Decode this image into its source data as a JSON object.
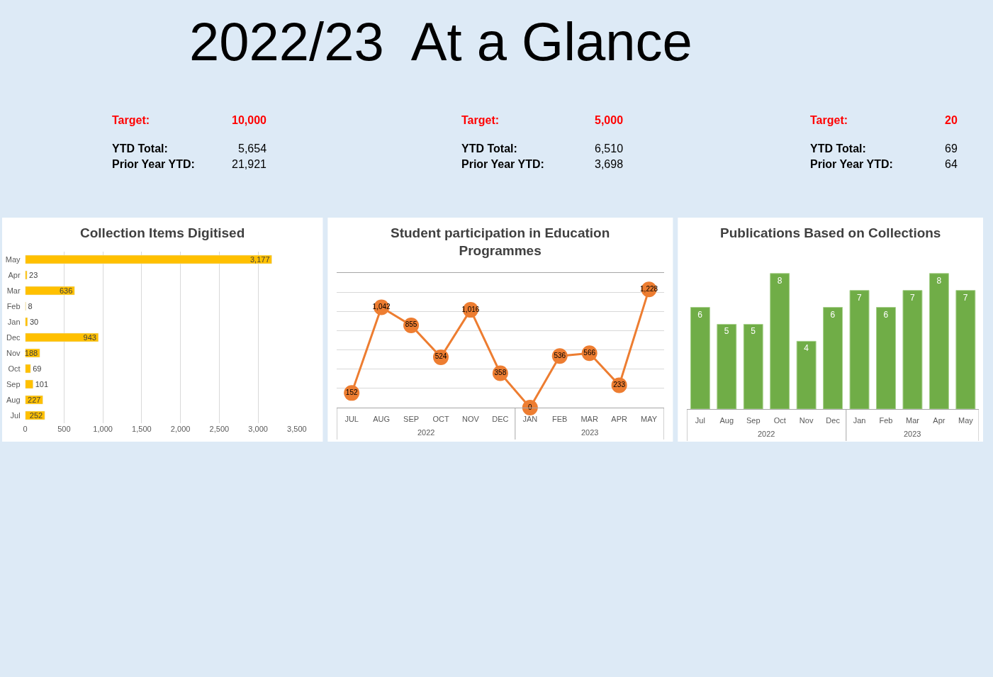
{
  "chart_data": [
    {
      "type": "other",
      "title": "2022/23  At a Glance"
    },
    {
      "type": "other",
      "annotations": [
        "Target:",
        "10,000",
        "YTD Total:",
        "5,654",
        "Prior Year YTD:",
        "21,921"
      ]
    },
    {
      "type": "other",
      "annotations": [
        "Target:",
        "5,000",
        "YTD Total:",
        "6,510",
        "Prior Year YTD:",
        "3,698"
      ]
    },
    {
      "type": "other",
      "annotations": [
        "Target:",
        "20",
        "YTD Total:",
        "69",
        "Prior Year YTD:",
        "64"
      ]
    },
    {
      "type": "bar",
      "orientation": "horizontal",
      "title": "Collection Items Digitised",
      "categories": [
        "May",
        "Apr",
        "Mar",
        "Feb",
        "Jan",
        "Dec",
        "Nov",
        "Oct",
        "Sep",
        "Aug",
        "Jul"
      ],
      "values": [
        3177,
        23,
        636,
        8,
        30,
        943,
        188,
        69,
        101,
        227,
        252
      ],
      "color": "#ffc000",
      "value_labels": [
        "3,177",
        "23",
        "636",
        "8",
        "30",
        "943",
        "188",
        "69",
        "101",
        "227",
        "252"
      ],
      "xlim": [
        0,
        3500
      ],
      "xticks": [
        0,
        {
          "value": 500,
          "label": "500"
        },
        {
          "value": 1000,
          "label": "1,000"
        },
        {
          "value": 1500,
          "label": "1,500"
        },
        {
          "value": 2000,
          "label": "2,000"
        },
        {
          "value": 2500,
          "label": "2,500"
        },
        {
          "value": 3000,
          "label": "3,000"
        },
        {
          "value": 3500,
          "label": "3,500"
        }
      ],
      "grid": "x"
    },
    {
      "type": "line",
      "title": "Student participation in Education Programmes",
      "categories": [
        "JUL",
        "AUG",
        "SEP",
        "OCT",
        "NOV",
        "DEC",
        "JAN",
        "FEB",
        "MAR",
        "APR",
        "MAY"
      ],
      "values": [
        152,
        1042,
        855,
        524,
        1016,
        358,
        0,
        536,
        566,
        233,
        1228
      ],
      "color": "#ed7d31",
      "value_labels": [
        "152",
        "1,042",
        "855",
        "524",
        "1,016",
        "358",
        "0",
        "536",
        "566",
        "233",
        "1,228"
      ],
      "ylim": [
        0,
        1400
      ],
      "yticks": [
        {
          "value": 0,
          "label": null
        },
        {
          "value": 200,
          "label": null
        },
        {
          "value": 400,
          "label": null
        },
        {
          "value": 600,
          "label": null
        },
        {
          "value": 800,
          "label": null
        },
        {
          "value": 1000,
          "label": null
        },
        {
          "value": 1200,
          "label": null
        },
        {
          "value": 1400,
          "label": null
        }
      ],
      "marker": "circle",
      "grid": "y",
      "tick_labels": "x",
      "annotations": [
        "2022",
        "2023"
      ]
    },
    {
      "type": "bar",
      "title": "Publications Based on Collections",
      "categories": [
        "Jul",
        "Aug",
        "Sep",
        "Oct",
        "Nov",
        "Dec",
        "Jan",
        "Feb",
        "Mar",
        "Apr",
        "May"
      ],
      "values": [
        6,
        5,
        5,
        8,
        4,
        6,
        7,
        6,
        7,
        8,
        7
      ],
      "color": "#70ad47",
      "tick_labels": "x",
      "data_labels": true,
      "annotations": [
        "2022",
        "2023"
      ]
    }
  ]
}
